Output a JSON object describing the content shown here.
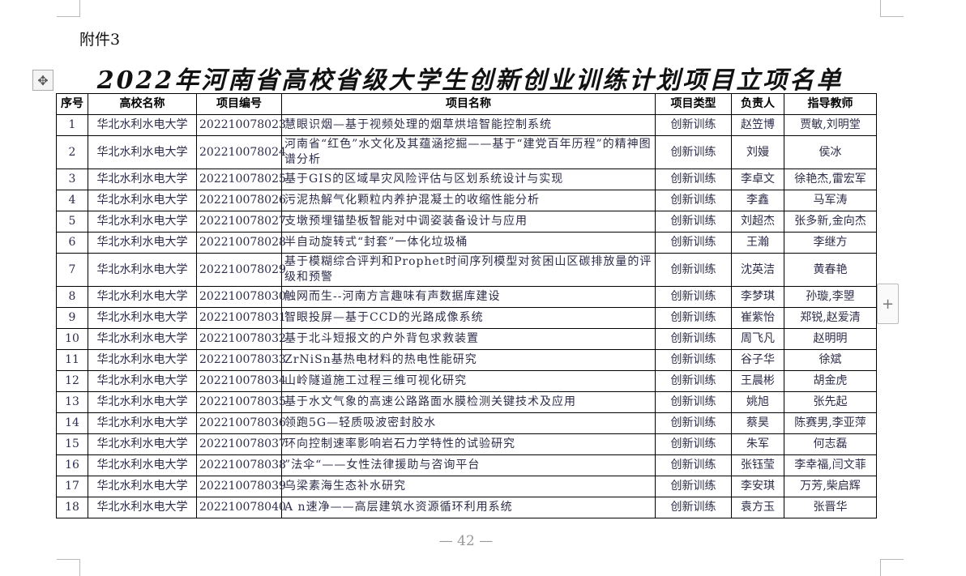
{
  "attachment_label": "附件3",
  "title": "2022年河南省高校省级大学生创新创业训练计划项目立项名单",
  "table": {
    "headers": [
      "序号",
      "高校名称",
      "项目编号",
      "项目名称",
      "项目类型",
      "负责人",
      "指导教师"
    ],
    "rows": [
      [
        "1",
        "华北水利水电大学",
        "202210078023",
        "慧眼识烟—基于视频处理的烟草烘培智能控制系统",
        "创新训练",
        "赵笠博",
        "贾敏,刘明堂"
      ],
      [
        "2",
        "华北水利水电大学",
        "202210078024",
        "河南省“红色”水文化及其蕴涵挖掘——基于“建党百年历程”的精神图谱分析",
        "创新训练",
        "刘嫚",
        "侯冰"
      ],
      [
        "3",
        "华北水利水电大学",
        "202210078025",
        "基于GIS的区域旱灾风险评估与区划系统设计与实现",
        "创新训练",
        "李卓文",
        "徐艳杰,雷宏军"
      ],
      [
        "4",
        "华北水利水电大学",
        "202210078026",
        "污泥热解气化颗粒内养护混凝土的收缩性能分析",
        "创新训练",
        "李鑫",
        "马军涛"
      ],
      [
        "5",
        "华北水利水电大学",
        "202210078027",
        "支墩预埋锚垫板智能对中调姿装备设计与应用",
        "创新训练",
        "刘超杰",
        "张多新,金向杰"
      ],
      [
        "6",
        "华北水利水电大学",
        "202210078028",
        "半自动旋转式“封套”一体化垃圾桶",
        "创新训练",
        "王瀚",
        "李继方"
      ],
      [
        "7",
        "华北水利水电大学",
        "202210078029",
        "基于模糊综合评判和Prophet时间序列模型对贫困山区碳排放量的评级和预警",
        "创新训练",
        "沈英洁",
        "黄春艳"
      ],
      [
        "8",
        "华北水利水电大学",
        "202210078030",
        "触网而生--河南方言趣味有声数据库建设",
        "创新训练",
        "李梦琪",
        "孙璇,李曌"
      ],
      [
        "9",
        "华北水利水电大学",
        "202210078031",
        "智眼投屏—基于CCD的光路成像系统",
        "创新训练",
        "崔紫怡",
        "郑锐,赵爱清"
      ],
      [
        "10",
        "华北水利水电大学",
        "202210078032",
        "基于北斗短报文的户外背包求救装置",
        "创新训练",
        "周飞凡",
        "赵明明"
      ],
      [
        "11",
        "华北水利水电大学",
        "202210078033",
        "ZrNiSn基热电材料的热电性能研究",
        "创新训练",
        "谷子华",
        "徐斌"
      ],
      [
        "12",
        "华北水利水电大学",
        "202210078034",
        "山岭隧道施工过程三维可视化研究",
        "创新训练",
        "王晨彬",
        "胡金虎"
      ],
      [
        "13",
        "华北水利水电大学",
        "202210078035",
        "基于水文气象的高速公路路面水膜检测关键技术及应用",
        "创新训练",
        "姚旭",
        "张先起"
      ],
      [
        "14",
        "华北水利水电大学",
        "202210078036",
        "领跑5G—轻质吸波密封胶水",
        "创新训练",
        "蔡昊",
        "陈赛男,李亚萍"
      ],
      [
        "15",
        "华北水利水电大学",
        "202210078037",
        "环向控制速率影响岩石力学特性的试验研究",
        "创新训练",
        "朱军",
        "何志磊"
      ],
      [
        "16",
        "华北水利水电大学",
        "202210078038",
        "”法伞“——女性法律援助与咨询平台",
        "创新训练",
        "张钰莹",
        "李幸福,闫文菲"
      ],
      [
        "17",
        "华北水利水电大学",
        "202210078039",
        "乌梁素海生态补水研究",
        "创新训练",
        "李安琪",
        "万芳,柴启辉"
      ],
      [
        "18",
        "华北水利水电大学",
        "202210078040",
        "A n速净——高层建筑水资源循环利用系统",
        "创新训练",
        "袁方玉",
        "张晋华"
      ]
    ]
  },
  "page_number": "— 42 —",
  "icons": {
    "move_handle": "move-arrows-icon",
    "add": "plus-icon"
  }
}
